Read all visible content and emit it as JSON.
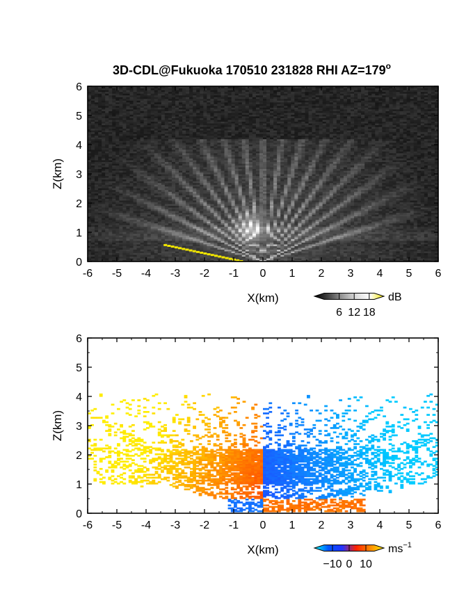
{
  "title": "3D-CDL@Fukuoka 170510 231828 RHI AZ=179",
  "title_sup": "o",
  "colors": {
    "background": "#ffffff",
    "reflectivity_floor": "#262626",
    "ground_clutter": "#f2e600",
    "velocity_toward": [
      "#2233ff",
      "#00ccff"
    ],
    "velocity_away": [
      "#ff2200",
      "#ffee00"
    ]
  },
  "chart_data": [
    {
      "type": "heatmap",
      "panel": "top",
      "field": "reflectivity",
      "xlabel": "X(km)",
      "ylabel": "Z(km)",
      "xlim": [
        -6,
        6
      ],
      "ylim": [
        0,
        6
      ],
      "x_ticks": [
        "-6",
        "-5",
        "-4",
        "-3",
        "-2",
        "-1",
        "0",
        "1",
        "2",
        "3",
        "4",
        "5",
        "6"
      ],
      "y_ticks": [
        "0",
        "1",
        "2",
        "3",
        "4",
        "5",
        "6"
      ],
      "colorbar": {
        "unit": "dB",
        "range": [
          0,
          20
        ],
        "ticks": [
          "6",
          "12",
          "18"
        ],
        "colormap": "grayscale"
      },
      "features": {
        "radar_origin_km": [
          0,
          0
        ],
        "beam_fan_top_km": 4.2,
        "bright_layer_km": [
          1.0,
          1.2
        ],
        "ground_clutter_segment_km": [
          [
            -3.4,
            0.55
          ],
          [
            -0.8,
            0.0
          ]
        ]
      }
    },
    {
      "type": "heatmap",
      "panel": "bottom",
      "field": "doppler_velocity",
      "xlabel": "X(km)",
      "ylabel": "Z(km)",
      "xlim": [
        -6,
        6
      ],
      "ylim": [
        0,
        6
      ],
      "x_ticks": [
        "-6",
        "-5",
        "-4",
        "-3",
        "-2",
        "-1",
        "0",
        "1",
        "2",
        "3",
        "4",
        "5",
        "6"
      ],
      "y_ticks": [
        "0",
        "1",
        "2",
        "3",
        "4",
        "5",
        "6"
      ],
      "colorbar": {
        "unit": "ms",
        "unit_sup": "−1",
        "range": [
          -15,
          15
        ],
        "ticks": [
          "−10",
          "0",
          "10"
        ],
        "colormap": "cyan-blue-red-yellow"
      },
      "features": {
        "echo_top_km": 4.1,
        "main_layer_km": [
          1.0,
          2.2
        ],
        "left_side_velocity": "positive (red-yellow)",
        "right_side_velocity": "negative (blue-cyan)"
      }
    }
  ]
}
